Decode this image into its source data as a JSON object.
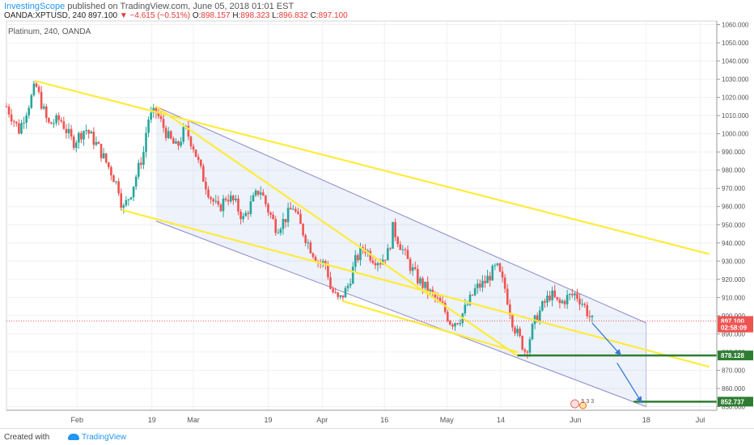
{
  "header": {
    "author": "InvestingScope",
    "published": "published on TradingView.com, June 05, 2018 01:01 EST",
    "symbol": "OANDA:XPTUSD, 240",
    "last": "897.100",
    "change": "▼ −4.615 (−0.51%)",
    "o_label": "O:",
    "o_value": "898.157",
    "h_label": "H:",
    "h_value": "898.323",
    "l_label": "L:",
    "l_value": "896.832",
    "c_label": "C:",
    "c_value": "897.100"
  },
  "footer": {
    "created": "Created with",
    "brand": "TradingView"
  },
  "colors": {
    "up": "#26a69a",
    "down": "#ef5350",
    "trend": "#ffeb3b",
    "channel": "#8e8ac8",
    "target": "#2e7d32",
    "arrow": "#3a7bd5"
  },
  "chart_data": {
    "type": "candlestick",
    "title": "Platinum, 240, OANDA",
    "ylim": [
      848,
      1062
    ],
    "y_ticks": [
      850,
      860,
      870,
      880,
      890,
      900,
      910,
      920,
      930,
      940,
      950,
      960,
      970,
      980,
      990,
      1000,
      1010,
      1020,
      1030,
      1040,
      1050,
      1060
    ],
    "y_tick_labels": [
      "850.000",
      "860.000",
      "870.000",
      "880.000",
      "890.000",
      "900.000",
      "910.000",
      "920.000",
      "930.000",
      "940.000",
      "950.000",
      "960.000",
      "970.000",
      "980.000",
      "990.000",
      "1000.000",
      "1010.000",
      "1020.000",
      "1030.000",
      "1040.000",
      "1050.000",
      "1060.000"
    ],
    "x_ticks": [
      {
        "label": "Feb",
        "day": 32
      },
      {
        "label": "19",
        "day": 50
      },
      {
        "label": "Mar",
        "day": 60
      },
      {
        "label": "19",
        "day": 78
      },
      {
        "label": "Apr",
        "day": 91
      },
      {
        "label": "16",
        "day": 106
      },
      {
        "label": "May",
        "day": 121
      },
      {
        "label": "14",
        "day": 134
      },
      {
        "label": "Jun",
        "day": 152
      },
      {
        "label": "18",
        "day": 169
      },
      {
        "label": "Jul",
        "day": 182
      }
    ],
    "xlim": [
      15,
      186
    ],
    "price_line": 897.1,
    "badges": [
      {
        "text": "897.100",
        "price": 897.1,
        "color": "#ef5350"
      },
      {
        "text": "02:58:09",
        "price": 893.5,
        "color": "#ef5350"
      },
      {
        "text": "878.128",
        "price": 878.128,
        "color": "#2e7d32"
      },
      {
        "text": "852.737",
        "price": 852.737,
        "color": "#2e7d32"
      }
    ],
    "path": [
      [
        15,
        1015
      ],
      [
        18,
        1002
      ],
      [
        21,
        1020
      ],
      [
        22,
        1027
      ],
      [
        25,
        1005
      ],
      [
        28,
        1008
      ],
      [
        31,
        995
      ],
      [
        34,
        1003
      ],
      [
        37,
        993
      ],
      [
        40,
        980
      ],
      [
        42,
        970
      ],
      [
        43,
        958
      ],
      [
        45,
        968
      ],
      [
        48,
        990
      ],
      [
        49,
        1008
      ],
      [
        51,
        1012
      ],
      [
        54,
        998
      ],
      [
        56,
        992
      ],
      [
        58,
        1003
      ],
      [
        60,
        993
      ],
      [
        62,
        978
      ],
      [
        64,
        966
      ],
      [
        66,
        958
      ],
      [
        68,
        966
      ],
      [
        70,
        962
      ],
      [
        72,
        953
      ],
      [
        74,
        962
      ],
      [
        76,
        970
      ],
      [
        78,
        958
      ],
      [
        80,
        948
      ],
      [
        82,
        953
      ],
      [
        84,
        960
      ],
      [
        86,
        948
      ],
      [
        88,
        938
      ],
      [
        90,
        930
      ],
      [
        92,
        928
      ],
      [
        93,
        915
      ],
      [
        95,
        908
      ],
      [
        97,
        915
      ],
      [
        99,
        930
      ],
      [
        101,
        938
      ],
      [
        103,
        932
      ],
      [
        105,
        930
      ],
      [
        107,
        935
      ],
      [
        108,
        948
      ],
      [
        110,
        938
      ],
      [
        112,
        928
      ],
      [
        114,
        920
      ],
      [
        116,
        915
      ],
      [
        118,
        910
      ],
      [
        120,
        905
      ],
      [
        122,
        896
      ],
      [
        124,
        898
      ],
      [
        126,
        906
      ],
      [
        128,
        915
      ],
      [
        130,
        918
      ],
      [
        133,
        927
      ],
      [
        135,
        915
      ],
      [
        137,
        895
      ],
      [
        139,
        885
      ],
      [
        140,
        880
      ],
      [
        142,
        896
      ],
      [
        144,
        905
      ],
      [
        146,
        912
      ],
      [
        148,
        906
      ],
      [
        150,
        910
      ],
      [
        152,
        912
      ],
      [
        154,
        906
      ],
      [
        155,
        901
      ],
      [
        156,
        897.1
      ]
    ],
    "trendlines": [
      {
        "from": [
          22,
          1029
        ],
        "to": [
          184,
          934
        ],
        "color": "#ffeb3b"
      },
      {
        "from": [
          51,
          1015
        ],
        "to": [
          138,
          878
        ],
        "color": "#ffeb3b"
      },
      {
        "from": [
          43,
          958
        ],
        "to": [
          184,
          872
        ],
        "color": "#ffeb3b"
      },
      {
        "from": [
          96,
          908
        ],
        "to": [
          138,
          880
        ],
        "color": "#ffeb3b"
      }
    ],
    "channel": {
      "upper": [
        [
          51,
          1015
        ],
        [
          169,
          896
        ]
      ],
      "lower": [
        [
          51,
          952
        ],
        [
          169,
          850
        ]
      ]
    },
    "targets": [
      {
        "from": [
          138,
          878.128
        ],
        "to": [
          186,
          878.128
        ]
      },
      {
        "from": [
          166,
          852.737
        ],
        "to": [
          186,
          852.737
        ]
      }
    ],
    "arrows": [
      {
        "from": [
          156,
          896
        ],
        "to": [
          163,
          878
        ]
      },
      {
        "from": [
          162,
          874
        ],
        "to": [
          168,
          852
        ]
      }
    ],
    "events": {
      "label": "5 3 3",
      "day": 153
    }
  }
}
